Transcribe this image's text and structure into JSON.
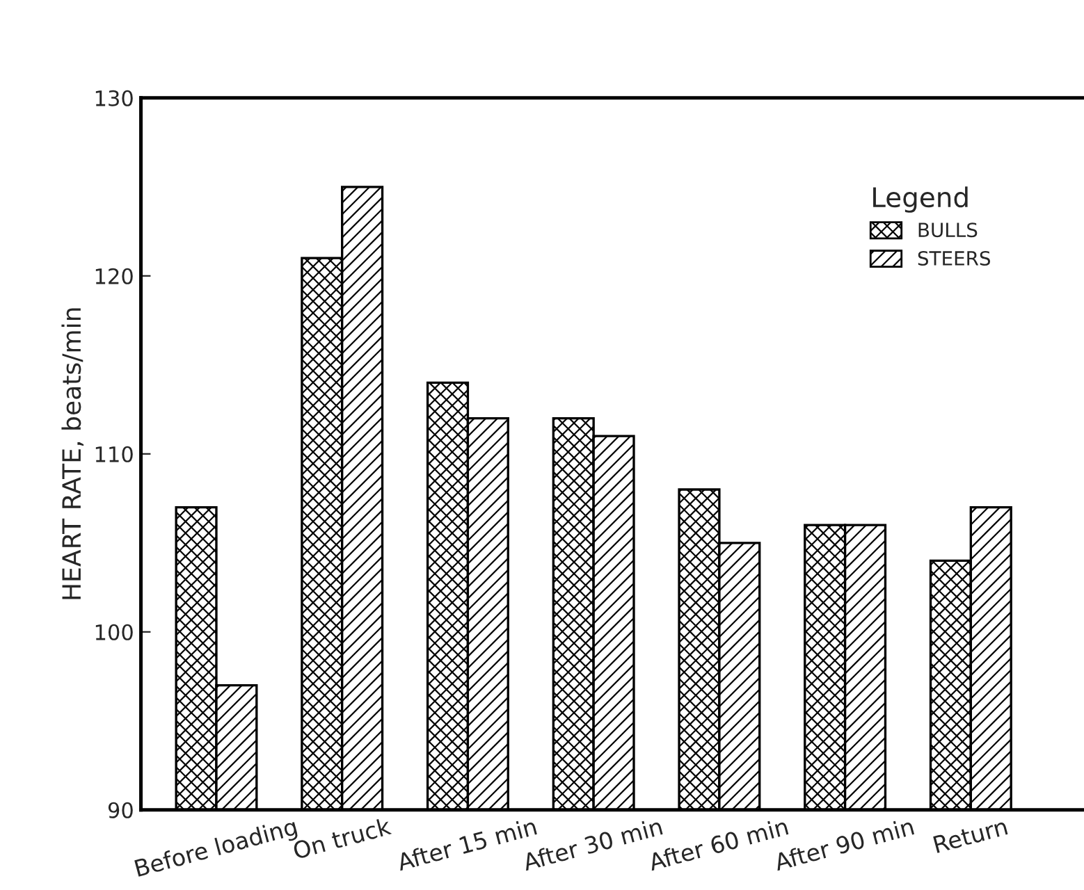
{
  "chart_data": {
    "type": "bar",
    "ylabel": "HEART RATE, beats/min",
    "legend_title": "Legend",
    "categories": [
      "Before loading",
      "On truck",
      "After 15 min",
      "After 30 min",
      "After 60 min",
      "After 90 min",
      "Return"
    ],
    "series": [
      {
        "name": "BULLS",
        "color": "#000000",
        "values": [
          107,
          121,
          114,
          112,
          108,
          106,
          104
        ]
      },
      {
        "name": "STEERS",
        "color": "#000000",
        "values": [
          97,
          125,
          112,
          111,
          105,
          106,
          107
        ]
      }
    ],
    "ylim": [
      90,
      130
    ],
    "yticks": [
      90,
      100,
      110,
      120,
      130
    ],
    "grid": false,
    "legend": "top right"
  }
}
